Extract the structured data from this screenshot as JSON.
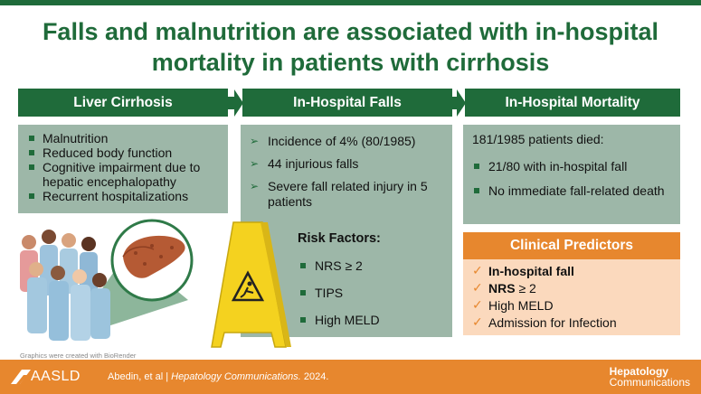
{
  "title_line1": "Falls and malnutrition are associated with in-hospital",
  "title_line2": "mortality in patients with cirrhosis",
  "columns": {
    "c1": "Liver Cirrhosis",
    "c2": "In-Hospital Falls",
    "c3": "In-Hospital Mortality"
  },
  "cirrhosis_items": [
    "Malnutrition",
    "Reduced body function",
    "Cognitive impairment due to hepatic encephalopathy",
    "Recurrent hospitalizations"
  ],
  "falls_items": [
    "Incidence of 4% (80/1985)",
    "44 injurious falls",
    "Severe fall related injury in 5 patients"
  ],
  "risk": {
    "title": "Risk Factors:",
    "items": [
      "NRS ≥  2",
      "TIPS",
      "High MELD"
    ]
  },
  "mortality": {
    "lead": "181/1985 patients died:",
    "items": [
      "21/80 with in-hospital fall",
      "No immediate fall-related death"
    ]
  },
  "predictors": {
    "title": "Clinical Predictors",
    "item1": "In-hospital fall",
    "item2_bold": "NRS",
    "item2_rest": " ≥  2",
    "item3": "High MELD",
    "item4": "Admission for Infection"
  },
  "credit": "Graphics were created with BioRender",
  "footer": {
    "logo": "AASLD",
    "citation_authors": "Abedin, et al  |  ",
    "citation_journal": "Hepatology Communications.",
    "citation_year": " 2024.",
    "journal_line1": "Hepatology",
    "journal_line2": "Communications"
  },
  "colors": {
    "green": "#1f6b3a",
    "sage": "#9db7a8",
    "orange": "#e7872e",
    "peach": "#fbd9bd"
  }
}
